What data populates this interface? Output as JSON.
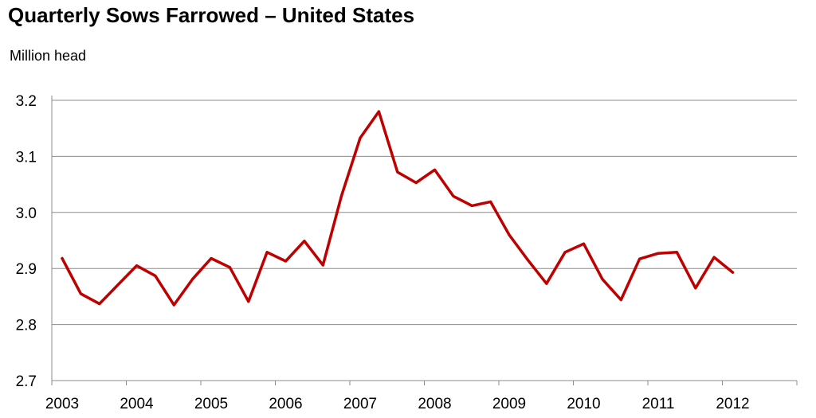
{
  "chart_data": {
    "type": "line",
    "title": "Quarterly Sows Farrowed – United States",
    "ylabel": "Million head",
    "xlabel": "",
    "ylim": [
      2.7,
      3.2
    ],
    "yticks": [
      "2.7",
      "2.8",
      "2.9",
      "3.0",
      "3.1",
      "3.2"
    ],
    "categories": [
      "2003",
      "2004",
      "2005",
      "2006",
      "2007",
      "2008",
      "2009",
      "2010",
      "2011",
      "2012"
    ],
    "grid": true,
    "legend": "none",
    "series": [
      {
        "color": "#c00000",
        "x": [
          "2003 Q1",
          "2003 Q2",
          "2003 Q3",
          "2003 Q4",
          "2004 Q1",
          "2004 Q2",
          "2004 Q3",
          "2004 Q4",
          "2005 Q1",
          "2005 Q2",
          "2005 Q3",
          "2005 Q4",
          "2006 Q1",
          "2006 Q2",
          "2006 Q3",
          "2006 Q4",
          "2007 Q1",
          "2007 Q2",
          "2007 Q3",
          "2007 Q4",
          "2008 Q1",
          "2008 Q2",
          "2008 Q3",
          "2008 Q4",
          "2009 Q1",
          "2009 Q2",
          "2009 Q3",
          "2009 Q4",
          "2010 Q1",
          "2010 Q2",
          "2010 Q3",
          "2010 Q4",
          "2011 Q1",
          "2011 Q2",
          "2011 Q3",
          "2011 Q4",
          "2012 Q1"
        ],
        "values": [
          2.918,
          2.855,
          2.837,
          2.871,
          2.905,
          2.887,
          2.835,
          2.881,
          2.918,
          2.902,
          2.841,
          2.929,
          2.913,
          2.949,
          2.906,
          3.03,
          3.133,
          3.18,
          3.072,
          3.053,
          3.076,
          3.029,
          3.012,
          3.019,
          2.96,
          2.915,
          2.873,
          2.929,
          2.944,
          2.881,
          2.844,
          2.917,
          2.927,
          2.929,
          2.865,
          2.92,
          2.893
        ]
      }
    ]
  }
}
